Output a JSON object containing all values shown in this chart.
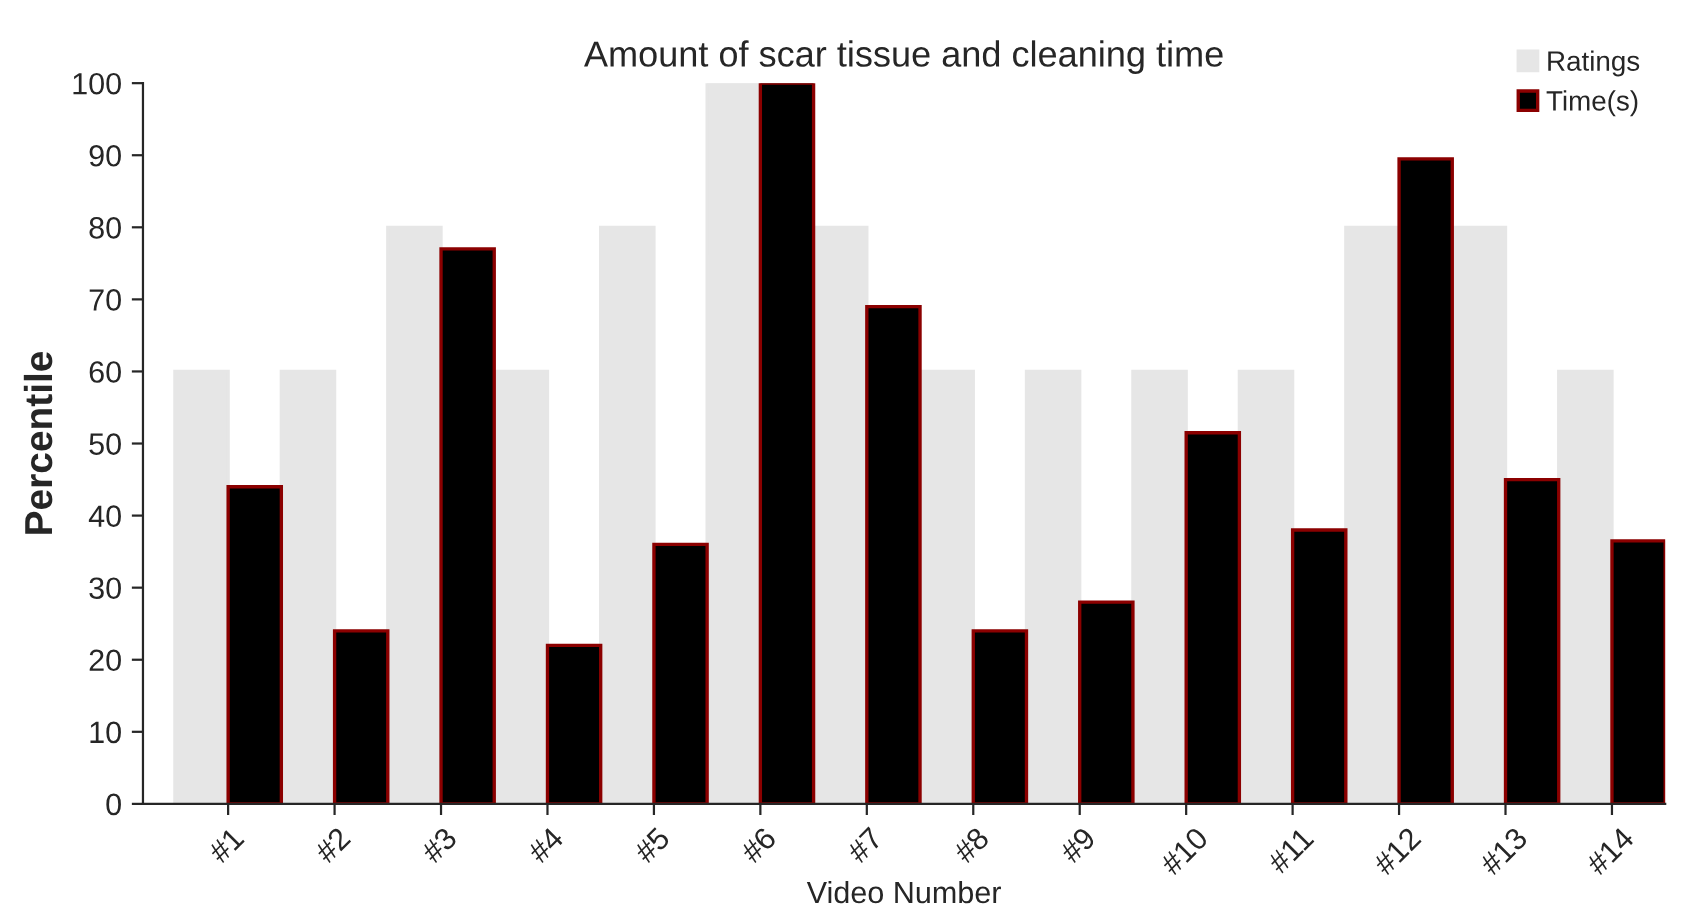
{
  "chart_data": {
    "type": "bar",
    "title": "Amount of scar tissue and cleaning time",
    "xlabel": "Video Number",
    "ylabel": "Percentile",
    "categories": [
      "#1",
      "#2",
      "#3",
      "#4",
      "#5",
      "#6",
      "#7",
      "#8",
      "#9",
      "#10",
      "#11",
      "#12",
      "#13",
      "#14"
    ],
    "series": [
      {
        "name": "Ratings",
        "color": "#e6e6e6",
        "values": [
          60,
          60,
          80,
          60,
          80,
          100,
          80,
          60,
          60,
          60,
          60,
          80,
          80,
          60
        ]
      },
      {
        "name": "Time(s)",
        "color": "#000000",
        "values": [
          44,
          24,
          77,
          22,
          36,
          100,
          69,
          24,
          28,
          51.5,
          38,
          89.5,
          45,
          36.5
        ]
      }
    ],
    "ylim": [
      0,
      100
    ],
    "yticks": [
      0,
      10,
      20,
      30,
      40,
      50,
      60,
      70,
      80,
      90,
      100
    ],
    "grid": false,
    "legend": "top right"
  }
}
